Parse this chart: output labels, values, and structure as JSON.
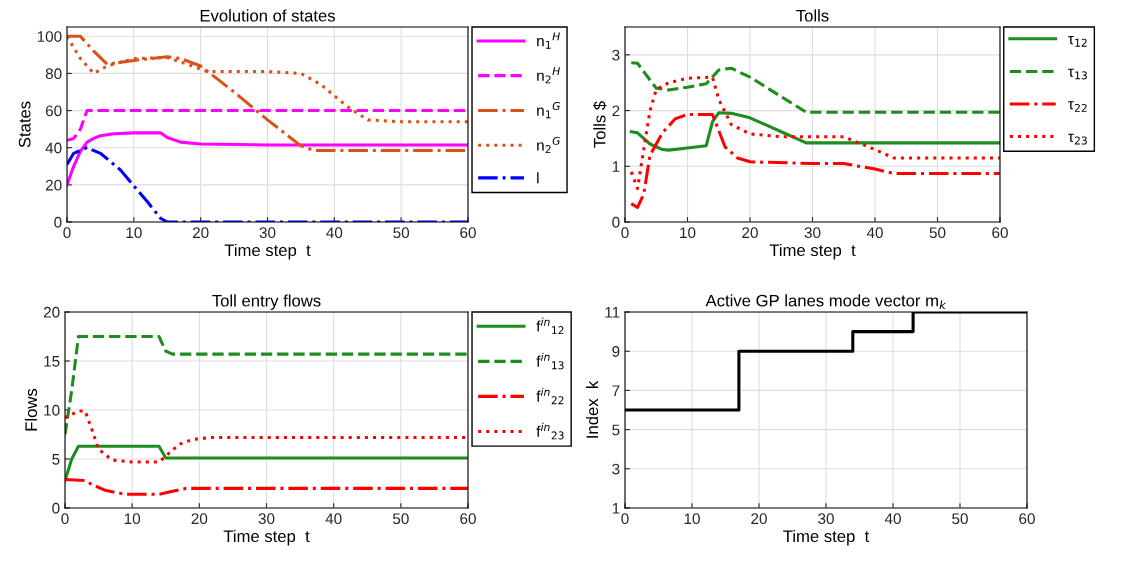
{
  "chart_data": [
    {
      "type": "line",
      "title": "Evolution of states",
      "xlabel": "Time step  t",
      "ylabel": "States",
      "xlim": [
        0,
        60
      ],
      "xticks": [
        0,
        10,
        20,
        30,
        40,
        50,
        60
      ],
      "ylim": [
        0,
        105
      ],
      "yticks": [
        0,
        20,
        40,
        60,
        80,
        100
      ],
      "grid": true,
      "legend": "right",
      "series": [
        {
          "name": "n$_{1}$$^{H}$",
          "color": "#ff00ff",
          "line_style": "solid",
          "x": [
            0,
            1,
            2,
            3,
            4,
            5,
            7,
            10,
            14,
            15,
            17,
            20,
            30,
            60
          ],
          "values": [
            20,
            30,
            38,
            43,
            45,
            46.5,
            47.5,
            48,
            48,
            45.5,
            43,
            42,
            41.5,
            41.5
          ]
        },
        {
          "name": "n$_{2}$$^{H}$",
          "color": "#ff00ff",
          "line_style": "dashed",
          "x": [
            0,
            1,
            2,
            3,
            60
          ],
          "values": [
            44,
            45,
            50,
            60,
            60
          ]
        },
        {
          "name": "n$_{1}$$^{G}$",
          "color": "#d95319",
          "line_style": "dashdot",
          "x": [
            0,
            2,
            4,
            6,
            10,
            15,
            17,
            20,
            25,
            30,
            35,
            37,
            60
          ],
          "values": [
            100,
            100,
            92,
            85,
            87,
            89,
            88,
            84,
            70,
            55,
            41,
            38.5,
            38.5
          ]
        },
        {
          "name": "n$_{2}$$^{G}$",
          "color": "#d95319",
          "line_style": "dotted",
          "x": [
            0,
            2,
            4,
            6,
            10,
            15,
            18,
            21,
            30,
            35,
            38,
            42,
            45,
            50,
            60
          ],
          "values": [
            100,
            88,
            80,
            84,
            88,
            88.5,
            85,
            81,
            81,
            80,
            74,
            62,
            55,
            54,
            54
          ]
        },
        {
          "name": "l",
          "color": "#0000ff",
          "line_style": "dashdot",
          "x": [
            0,
            1,
            3,
            5,
            8,
            12,
            14,
            15,
            60
          ],
          "values": [
            31,
            37,
            40,
            37,
            28,
            11,
            2,
            0,
            0
          ]
        }
      ]
    },
    {
      "type": "line",
      "title": "Tolls",
      "xlabel": "Time step  t",
      "ylabel": "Tolls $",
      "xlim": [
        0,
        60
      ],
      "xticks": [
        0,
        10,
        20,
        30,
        40,
        50,
        60
      ],
      "ylim": [
        0,
        3.5
      ],
      "yticks": [
        0,
        1,
        2,
        3
      ],
      "grid": true,
      "legend": "right",
      "series": [
        {
          "name": "τ$_{12}$",
          "color": "#1e8c1e",
          "line_style": "solid",
          "x": [
            1,
            2,
            4,
            6,
            7,
            10,
            13,
            14,
            15,
            17,
            20,
            25,
            29,
            60
          ],
          "values": [
            1.62,
            1.6,
            1.4,
            1.3,
            1.29,
            1.33,
            1.37,
            1.8,
            1.96,
            1.95,
            1.87,
            1.62,
            1.42,
            1.42
          ]
        },
        {
          "name": "τ$_{13}$",
          "color": "#1e8c1e",
          "line_style": "dashed",
          "x": [
            1,
            2,
            3,
            5,
            7,
            10,
            13,
            15,
            17,
            20,
            25,
            29,
            60
          ],
          "values": [
            2.86,
            2.85,
            2.7,
            2.4,
            2.37,
            2.42,
            2.48,
            2.73,
            2.76,
            2.6,
            2.25,
            1.97,
            1.97
          ]
        },
        {
          "name": "τ$_{22}$",
          "color": "#ff0000",
          "line_style": "dashdot",
          "x": [
            1,
            2,
            3,
            4,
            6,
            8,
            10,
            14,
            16,
            18,
            20,
            30,
            35,
            40,
            43,
            60
          ],
          "values": [
            0.33,
            0.26,
            0.5,
            1.2,
            1.6,
            1.85,
            1.93,
            1.93,
            1.35,
            1.15,
            1.08,
            1.05,
            1.05,
            0.95,
            0.87,
            0.87
          ]
        },
        {
          "name": "τ$_{23}$",
          "color": "#ff0000",
          "line_style": "dotted",
          "x": [
            1,
            2,
            3,
            4,
            5,
            7,
            10,
            14,
            15,
            17,
            20,
            25,
            35,
            40,
            43,
            60
          ],
          "values": [
            0.9,
            0.6,
            1.3,
            2.0,
            2.38,
            2.5,
            2.58,
            2.6,
            2.2,
            1.75,
            1.58,
            1.53,
            1.53,
            1.3,
            1.15,
            1.15
          ]
        }
      ]
    },
    {
      "type": "line",
      "title": "Toll entry flows",
      "xlabel": "Time step  t",
      "ylabel": "Flows",
      "xlim": [
        0,
        60
      ],
      "xticks": [
        0,
        10,
        20,
        30,
        40,
        50,
        60
      ],
      "ylim": [
        0,
        20
      ],
      "yticks": [
        0,
        5,
        10,
        15,
        20
      ],
      "grid": true,
      "legend": "right",
      "series": [
        {
          "name": "f$^{in}$$_{12}$",
          "color": "#1e8c1e",
          "line_style": "solid",
          "x": [
            0,
            1,
            2,
            14,
            15,
            60
          ],
          "values": [
            2.8,
            5,
            6.3,
            6.3,
            5.1,
            5.1
          ]
        },
        {
          "name": "f$^{in}$$_{13}$",
          "color": "#1e8c1e",
          "line_style": "dashed",
          "x": [
            0,
            1,
            2,
            14,
            15,
            16,
            60
          ],
          "values": [
            7.5,
            12,
            17.5,
            17.5,
            16,
            15.7,
            15.7
          ]
        },
        {
          "name": "f$^{in}$$_{22}$",
          "color": "#ff0000",
          "line_style": "dashdot",
          "x": [
            0,
            3,
            4,
            6,
            9,
            14,
            16,
            18,
            20,
            60
          ],
          "values": [
            2.9,
            2.8,
            2.4,
            1.8,
            1.4,
            1.4,
            1.7,
            2.0,
            2.0,
            2.0
          ]
        },
        {
          "name": "f$^{in}$$_{23}$",
          "color": "#ff0000",
          "line_style": "dotted",
          "x": [
            0,
            2,
            3,
            4,
            5,
            7,
            10,
            14,
            15,
            17,
            19,
            22,
            60
          ],
          "values": [
            9.2,
            9.9,
            9.9,
            8,
            6,
            4.9,
            4.7,
            4.7,
            5.3,
            6.5,
            7.0,
            7.2,
            7.2
          ]
        }
      ]
    },
    {
      "type": "step",
      "title": "Active GP lanes mode vector m$_{k}$",
      "xlabel": "Time step  t",
      "ylabel": "Index  k",
      "xlim": [
        0,
        60
      ],
      "xticks": [
        0,
        10,
        20,
        30,
        40,
        50,
        60
      ],
      "ylim": [
        1,
        11
      ],
      "yticks": [
        1,
        3,
        5,
        7,
        9,
        11
      ],
      "grid": true,
      "series": [
        {
          "color": "#000000",
          "line_style": "solid",
          "x": [
            0,
            17,
            34,
            43,
            60
          ],
          "values": [
            6,
            9,
            10,
            11,
            11
          ]
        }
      ]
    }
  ]
}
